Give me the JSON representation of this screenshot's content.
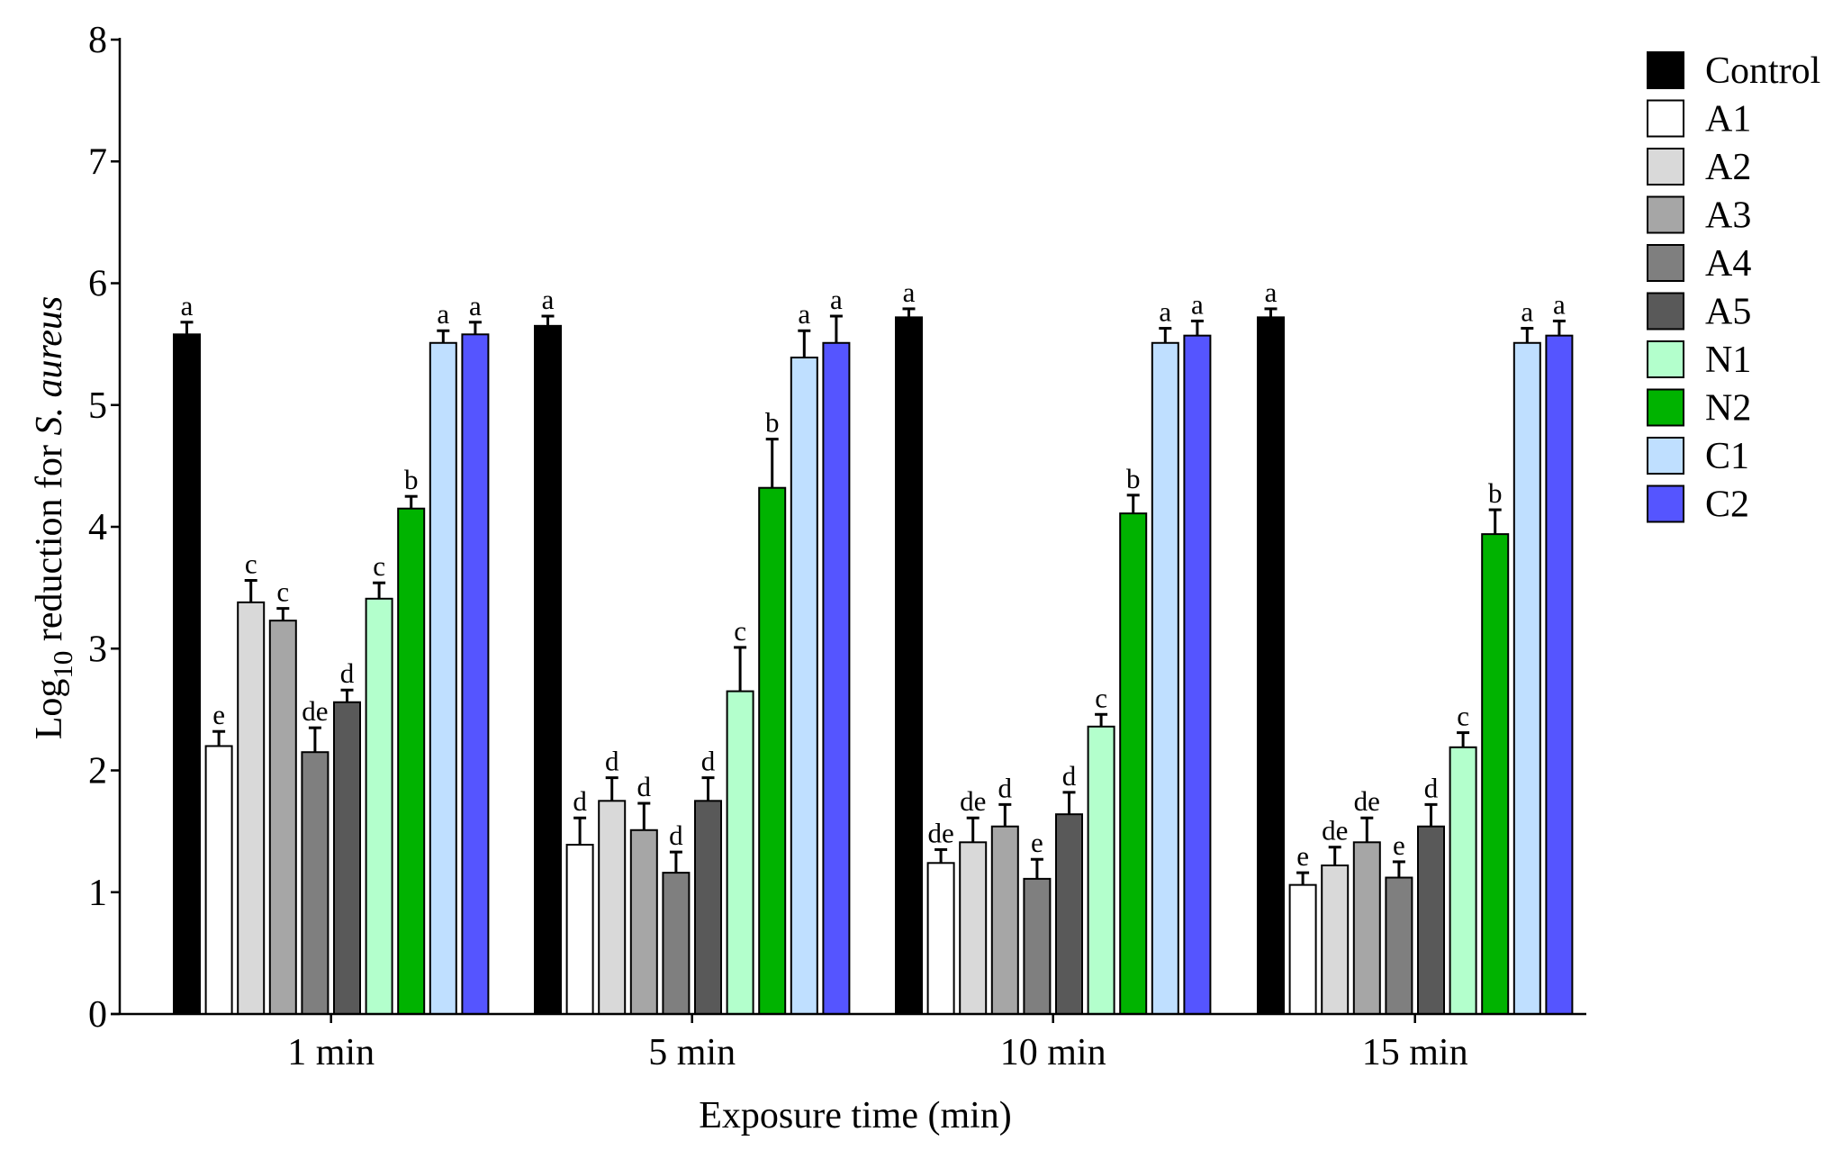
{
  "chart_data": {
    "type": "bar",
    "xlabel": "Exposure time (min)",
    "ylabel": {
      "prefix": "Log",
      "subscript": "10",
      "middle": " reduction for ",
      "italic": "S. aureus"
    },
    "ylim": [
      0,
      8
    ],
    "yticks": [
      "0",
      "1",
      "2",
      "3",
      "4",
      "5",
      "6",
      "7",
      "8"
    ],
    "grid": false,
    "legend_position": "right",
    "categories": [
      "1 min",
      "5 min",
      "10 min",
      "15 min"
    ],
    "series": [
      {
        "name": "Control",
        "color": "#000000",
        "values": [
          5.58,
          5.65,
          5.72,
          5.72
        ],
        "errors": [
          0.1,
          0.08,
          0.07,
          0.07
        ],
        "letters": [
          "a",
          "a",
          "a",
          "a"
        ]
      },
      {
        "name": "A1",
        "color": "#ffffff",
        "values": [
          2.2,
          1.39,
          1.24,
          1.06
        ],
        "errors": [
          0.12,
          0.22,
          0.11,
          0.1
        ],
        "letters": [
          "e",
          "d",
          "de",
          "e"
        ]
      },
      {
        "name": "A2",
        "color": "#d9d9d9",
        "values": [
          3.38,
          1.75,
          1.41,
          1.22
        ],
        "errors": [
          0.18,
          0.19,
          0.2,
          0.15
        ],
        "letters": [
          "c",
          "d",
          "de",
          "de"
        ]
      },
      {
        "name": "A3",
        "color": "#a6a6a6",
        "values": [
          3.23,
          1.51,
          1.54,
          1.41
        ],
        "errors": [
          0.1,
          0.22,
          0.18,
          0.2
        ],
        "letters": [
          "c",
          "d",
          "d",
          "de"
        ]
      },
      {
        "name": "A4",
        "color": "#7f7f7f",
        "values": [
          2.15,
          1.16,
          1.11,
          1.12
        ],
        "errors": [
          0.2,
          0.17,
          0.16,
          0.13
        ],
        "letters": [
          "de",
          "d",
          "e",
          "e"
        ]
      },
      {
        "name": "A5",
        "color": "#595959",
        "values": [
          2.56,
          1.75,
          1.64,
          1.54
        ],
        "errors": [
          0.1,
          0.19,
          0.18,
          0.18
        ],
        "letters": [
          "d",
          "d",
          "d",
          "d"
        ]
      },
      {
        "name": "N1",
        "color": "#b3ffcc",
        "values": [
          3.41,
          2.65,
          2.36,
          2.19
        ],
        "errors": [
          0.13,
          0.36,
          0.1,
          0.12
        ],
        "letters": [
          "c",
          "c",
          "c",
          "c"
        ]
      },
      {
        "name": "N2",
        "color": "#00b300",
        "values": [
          4.15,
          4.32,
          4.11,
          3.94
        ],
        "errors": [
          0.1,
          0.4,
          0.15,
          0.2
        ],
        "letters": [
          "b",
          "b",
          "b",
          "b"
        ]
      },
      {
        "name": "C1",
        "color": "#bfdfff",
        "values": [
          5.51,
          5.39,
          5.51,
          5.51
        ],
        "errors": [
          0.1,
          0.22,
          0.12,
          0.12
        ],
        "letters": [
          "a",
          "a",
          "a",
          "a"
        ]
      },
      {
        "name": "C2",
        "color": "#5555ff",
        "values": [
          5.58,
          5.51,
          5.57,
          5.57
        ],
        "errors": [
          0.1,
          0.22,
          0.12,
          0.12
        ],
        "letters": [
          "a",
          "a",
          "a",
          "a"
        ]
      }
    ]
  }
}
